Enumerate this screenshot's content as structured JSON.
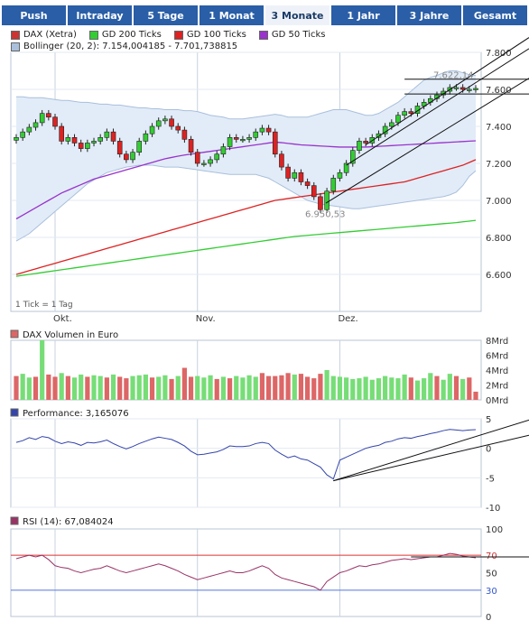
{
  "tabs": [
    {
      "label": "Push",
      "active": false
    },
    {
      "label": "Intraday",
      "active": false
    },
    {
      "label": "5 Tage",
      "active": false
    },
    {
      "label": "1 Monat",
      "active": false
    },
    {
      "label": "3 Monate",
      "active": true
    },
    {
      "label": "1 Jahr",
      "active": false
    },
    {
      "label": "3 Jahre",
      "active": false
    },
    {
      "label": "Gesamt",
      "active": false
    }
  ],
  "legend": {
    "dax": "DAX (Xetra)",
    "gd200": "GD 200 Ticks",
    "gd100": "GD 100 Ticks",
    "gd50": "GD 50 Ticks",
    "bollinger": "Bollinger (20, 2): 7.154,004185 - 7.701,738815",
    "tick_note": "1 Tick = 1 Tag"
  },
  "colors": {
    "dax": "#cc3333",
    "gd200": "#33cc33",
    "gd100": "#dd2222",
    "gd50": "#9933cc",
    "bollinger_fill": "#e2ecf8",
    "bollinger_line": "#a9bfdc",
    "candle_up": "#33cc33",
    "candle_down": "#dd2222",
    "volume_up": "#77dd77",
    "volume_down": "#dd6666",
    "performance": "#3344aa",
    "rsi": "#993366",
    "tab_bg": "#2a5ea6",
    "tab_active_bg": "#eef2f8"
  },
  "x_axis": {
    "month_labels": [
      "Okt.",
      "Nov.",
      "Dez."
    ]
  },
  "chart_data": [
    {
      "type": "candlestick",
      "series_name": "DAX (Xetra)",
      "ylim": [
        6400,
        7800
      ],
      "yticks": [
        "7.800",
        "7.600",
        "7.400",
        "7.200",
        "7.000",
        "6.800",
        "6.600"
      ],
      "annotations": {
        "high_label": "7.622,14",
        "low_label": "6.950,53"
      },
      "close": [
        7340,
        7370,
        7395,
        7420,
        7470,
        7450,
        7400,
        7320,
        7340,
        7310,
        7280,
        7310,
        7320,
        7340,
        7370,
        7320,
        7250,
        7220,
        7260,
        7320,
        7360,
        7400,
        7430,
        7440,
        7400,
        7380,
        7330,
        7260,
        7200,
        7200,
        7220,
        7250,
        7290,
        7340,
        7330,
        7330,
        7340,
        7370,
        7390,
        7370,
        7250,
        7180,
        7120,
        7150,
        7100,
        7080,
        7020,
        6950,
        7050,
        7120,
        7150,
        7200,
        7270,
        7320,
        7310,
        7340,
        7360,
        7400,
        7420,
        7460,
        7480,
        7470,
        7510,
        7530,
        7550,
        7570,
        7590,
        7610,
        7610,
        7600,
        7600,
        7605
      ],
      "bollinger_upper": [
        7560,
        7560,
        7555,
        7555,
        7555,
        7550,
        7545,
        7540,
        7540,
        7535,
        7530,
        7530,
        7525,
        7520,
        7520,
        7515,
        7515,
        7510,
        7505,
        7500,
        7500,
        7495,
        7495,
        7490,
        7490,
        7490,
        7485,
        7485,
        7480,
        7470,
        7460,
        7455,
        7450,
        7440,
        7440,
        7440,
        7445,
        7450,
        7455,
        7460,
        7465,
        7460,
        7450,
        7450,
        7450,
        7450,
        7460,
        7470,
        7480,
        7490,
        7490,
        7490,
        7480,
        7470,
        7460,
        7460,
        7470,
        7490,
        7510,
        7530,
        7560,
        7590,
        7620,
        7650,
        7665,
        7675,
        7690,
        7700,
        7700,
        7690,
        7680,
        7675
      ],
      "bollinger_lower": [
        6780,
        6800,
        6820,
        6850,
        6880,
        6910,
        6940,
        6970,
        7000,
        7030,
        7060,
        7090,
        7110,
        7130,
        7150,
        7160,
        7170,
        7180,
        7185,
        7190,
        7190,
        7190,
        7185,
        7180,
        7180,
        7180,
        7175,
        7170,
        7165,
        7160,
        7155,
        7150,
        7145,
        7140,
        7140,
        7140,
        7140,
        7140,
        7130,
        7120,
        7100,
        7080,
        7060,
        7040,
        7020,
        7000,
        6990,
        6980,
        6975,
        6970,
        6965,
        6960,
        6955,
        6955,
        6960,
        6965,
        6970,
        6975,
        6980,
        6985,
        6990,
        6995,
        7000,
        7005,
        7010,
        7015,
        7020,
        7030,
        7045,
        7080,
        7130,
        7160
      ],
      "gd200": [
        6590,
        6595,
        6600,
        6605,
        6610,
        6615,
        6620,
        6625,
        6630,
        6635,
        6640,
        6645,
        6650,
        6655,
        6660,
        6665,
        6670,
        6675,
        6680,
        6685,
        6690,
        6695,
        6700,
        6705,
        6710,
        6715,
        6720,
        6725,
        6730,
        6735,
        6740,
        6745,
        6750,
        6755,
        6760,
        6765,
        6770,
        6775,
        6780,
        6785,
        6790,
        6795,
        6800,
        6805,
        6808,
        6811,
        6814,
        6817,
        6820,
        6823,
        6826,
        6829,
        6832,
        6835,
        6838,
        6841,
        6844,
        6847,
        6850,
        6853,
        6856,
        6859,
        6862,
        6865,
        6868,
        6871,
        6874,
        6877,
        6880,
        6884,
        6888,
        6892
      ],
      "gd100": [
        6600,
        6610,
        6620,
        6630,
        6640,
        6650,
        6660,
        6670,
        6680,
        6690,
        6700,
        6710,
        6720,
        6730,
        6740,
        6750,
        6760,
        6770,
        6780,
        6790,
        6800,
        6810,
        6820,
        6830,
        6840,
        6850,
        6860,
        6870,
        6880,
        6890,
        6900,
        6910,
        6920,
        6930,
        6940,
        6950,
        6960,
        6970,
        6980,
        6990,
        7000,
        7005,
        7010,
        7015,
        7020,
        7025,
        7030,
        7035,
        7040,
        7045,
        7050,
        7055,
        7060,
        7065,
        7070,
        7075,
        7080,
        7085,
        7090,
        7095,
        7100,
        7110,
        7120,
        7130,
        7140,
        7150,
        7160,
        7170,
        7180,
        7190,
        7205,
        7220
      ],
      "gd50": [
        6900,
        6920,
        6940,
        6960,
        6980,
        7000,
        7020,
        7040,
        7055,
        7070,
        7085,
        7100,
        7115,
        7125,
        7135,
        7145,
        7155,
        7165,
        7175,
        7185,
        7195,
        7205,
        7215,
        7225,
        7232,
        7239,
        7245,
        7250,
        7255,
        7260,
        7265,
        7270,
        7275,
        7280,
        7285,
        7290,
        7295,
        7300,
        7305,
        7310,
        7315,
        7312,
        7308,
        7304,
        7300,
        7298,
        7296,
        7294,
        7292,
        7290,
        7288,
        7288,
        7288,
        7288,
        7288,
        7290,
        7292,
        7294,
        7296,
        7298,
        7300,
        7302,
        7304,
        7306,
        7308,
        7310,
        7312,
        7314,
        7316,
        7318,
        7320,
        7322
      ]
    },
    {
      "type": "bar",
      "title": "DAX Volumen in Euro",
      "unit": "Mrd",
      "ylim": [
        0,
        8
      ],
      "yticks": [
        "8Mrd",
        "6Mrd",
        "4Mrd",
        "2Mrd",
        "0Mrd"
      ],
      "values": [
        3.2,
        3.5,
        3.0,
        3.1,
        8.0,
        3.4,
        3.1,
        3.6,
        3.2,
        3.0,
        3.4,
        3.1,
        3.3,
        3.2,
        3.0,
        3.4,
        3.1,
        2.9,
        3.2,
        3.3,
        3.4,
        3.0,
        3.1,
        3.3,
        2.8,
        3.2,
        4.3,
        3.1,
        3.2,
        3.0,
        3.3,
        2.8,
        3.1,
        2.9,
        3.2,
        3.0,
        3.3,
        3.1,
        3.6,
        3.2,
        3.2,
        3.3,
        3.6,
        3.4,
        3.5,
        3.1,
        2.9,
        3.5,
        4.0,
        3.2,
        3.1,
        3.0,
        2.8,
        2.9,
        3.1,
        2.7,
        2.9,
        3.2,
        3.0,
        2.9,
        3.4,
        3.0,
        2.6,
        2.9,
        3.6,
        3.2,
        2.7,
        3.5,
        3.2,
        2.8,
        3.0,
        1.1
      ],
      "up": [
        false,
        true,
        true,
        false,
        true,
        false,
        false,
        true,
        false,
        true,
        true,
        false,
        true,
        true,
        false,
        true,
        false,
        false,
        true,
        true,
        true,
        false,
        true,
        true,
        false,
        true,
        false,
        false,
        true,
        true,
        true,
        false,
        true,
        false,
        true,
        true,
        true,
        true,
        false,
        false,
        false,
        false,
        false,
        true,
        false,
        false,
        false,
        false,
        true,
        true,
        true,
        true,
        true,
        true,
        true,
        true,
        true,
        true,
        true,
        true,
        true,
        false,
        true,
        true,
        true,
        false,
        true,
        true,
        false,
        true,
        false,
        false
      ]
    },
    {
      "type": "line",
      "title": "Performance: 3,165076",
      "ylim": [
        -10,
        5
      ],
      "yticks": [
        "5",
        "0",
        "-5",
        "-10"
      ],
      "values": [
        1.0,
        1.3,
        1.8,
        1.5,
        2.0,
        1.8,
        1.2,
        0.8,
        1.1,
        0.9,
        0.5,
        1.0,
        0.9,
        1.1,
        1.4,
        0.8,
        0.3,
        -0.1,
        0.3,
        0.8,
        1.2,
        1.6,
        1.9,
        1.7,
        1.5,
        1.0,
        0.4,
        -0.5,
        -1.1,
        -1.0,
        -0.8,
        -0.6,
        -0.2,
        0.4,
        0.3,
        0.3,
        0.4,
        0.8,
        1.0,
        0.8,
        -0.3,
        -1.0,
        -1.6,
        -1.3,
        -1.8,
        -2.0,
        -2.6,
        -3.2,
        -4.5,
        -5.2,
        -2.0,
        -1.5,
        -1.0,
        -0.5,
        0.0,
        0.3,
        0.5,
        1.0,
        1.2,
        1.6,
        1.8,
        1.7,
        2.0,
        2.2,
        2.5,
        2.7,
        3.0,
        3.2,
        3.1,
        3.0,
        3.1,
        3.165
      ]
    },
    {
      "type": "line",
      "title": "RSI (14): 67,084024",
      "ylim": [
        0,
        100
      ],
      "yticks": [
        "100",
        "70",
        "50",
        "30",
        "0"
      ],
      "reference_lines": [
        70,
        30
      ],
      "values": [
        66,
        68,
        70,
        68,
        70,
        65,
        58,
        56,
        55,
        52,
        50,
        52,
        54,
        55,
        58,
        55,
        52,
        50,
        52,
        54,
        56,
        58,
        60,
        58,
        55,
        52,
        48,
        45,
        42,
        44,
        46,
        48,
        50,
        52,
        50,
        50,
        52,
        55,
        58,
        55,
        48,
        44,
        42,
        40,
        38,
        36,
        34,
        30,
        40,
        45,
        50,
        52,
        55,
        58,
        57,
        59,
        60,
        62,
        64,
        65,
        66,
        65,
        66,
        67,
        68,
        68,
        70,
        72,
        71,
        69,
        68,
        67
      ]
    }
  ]
}
